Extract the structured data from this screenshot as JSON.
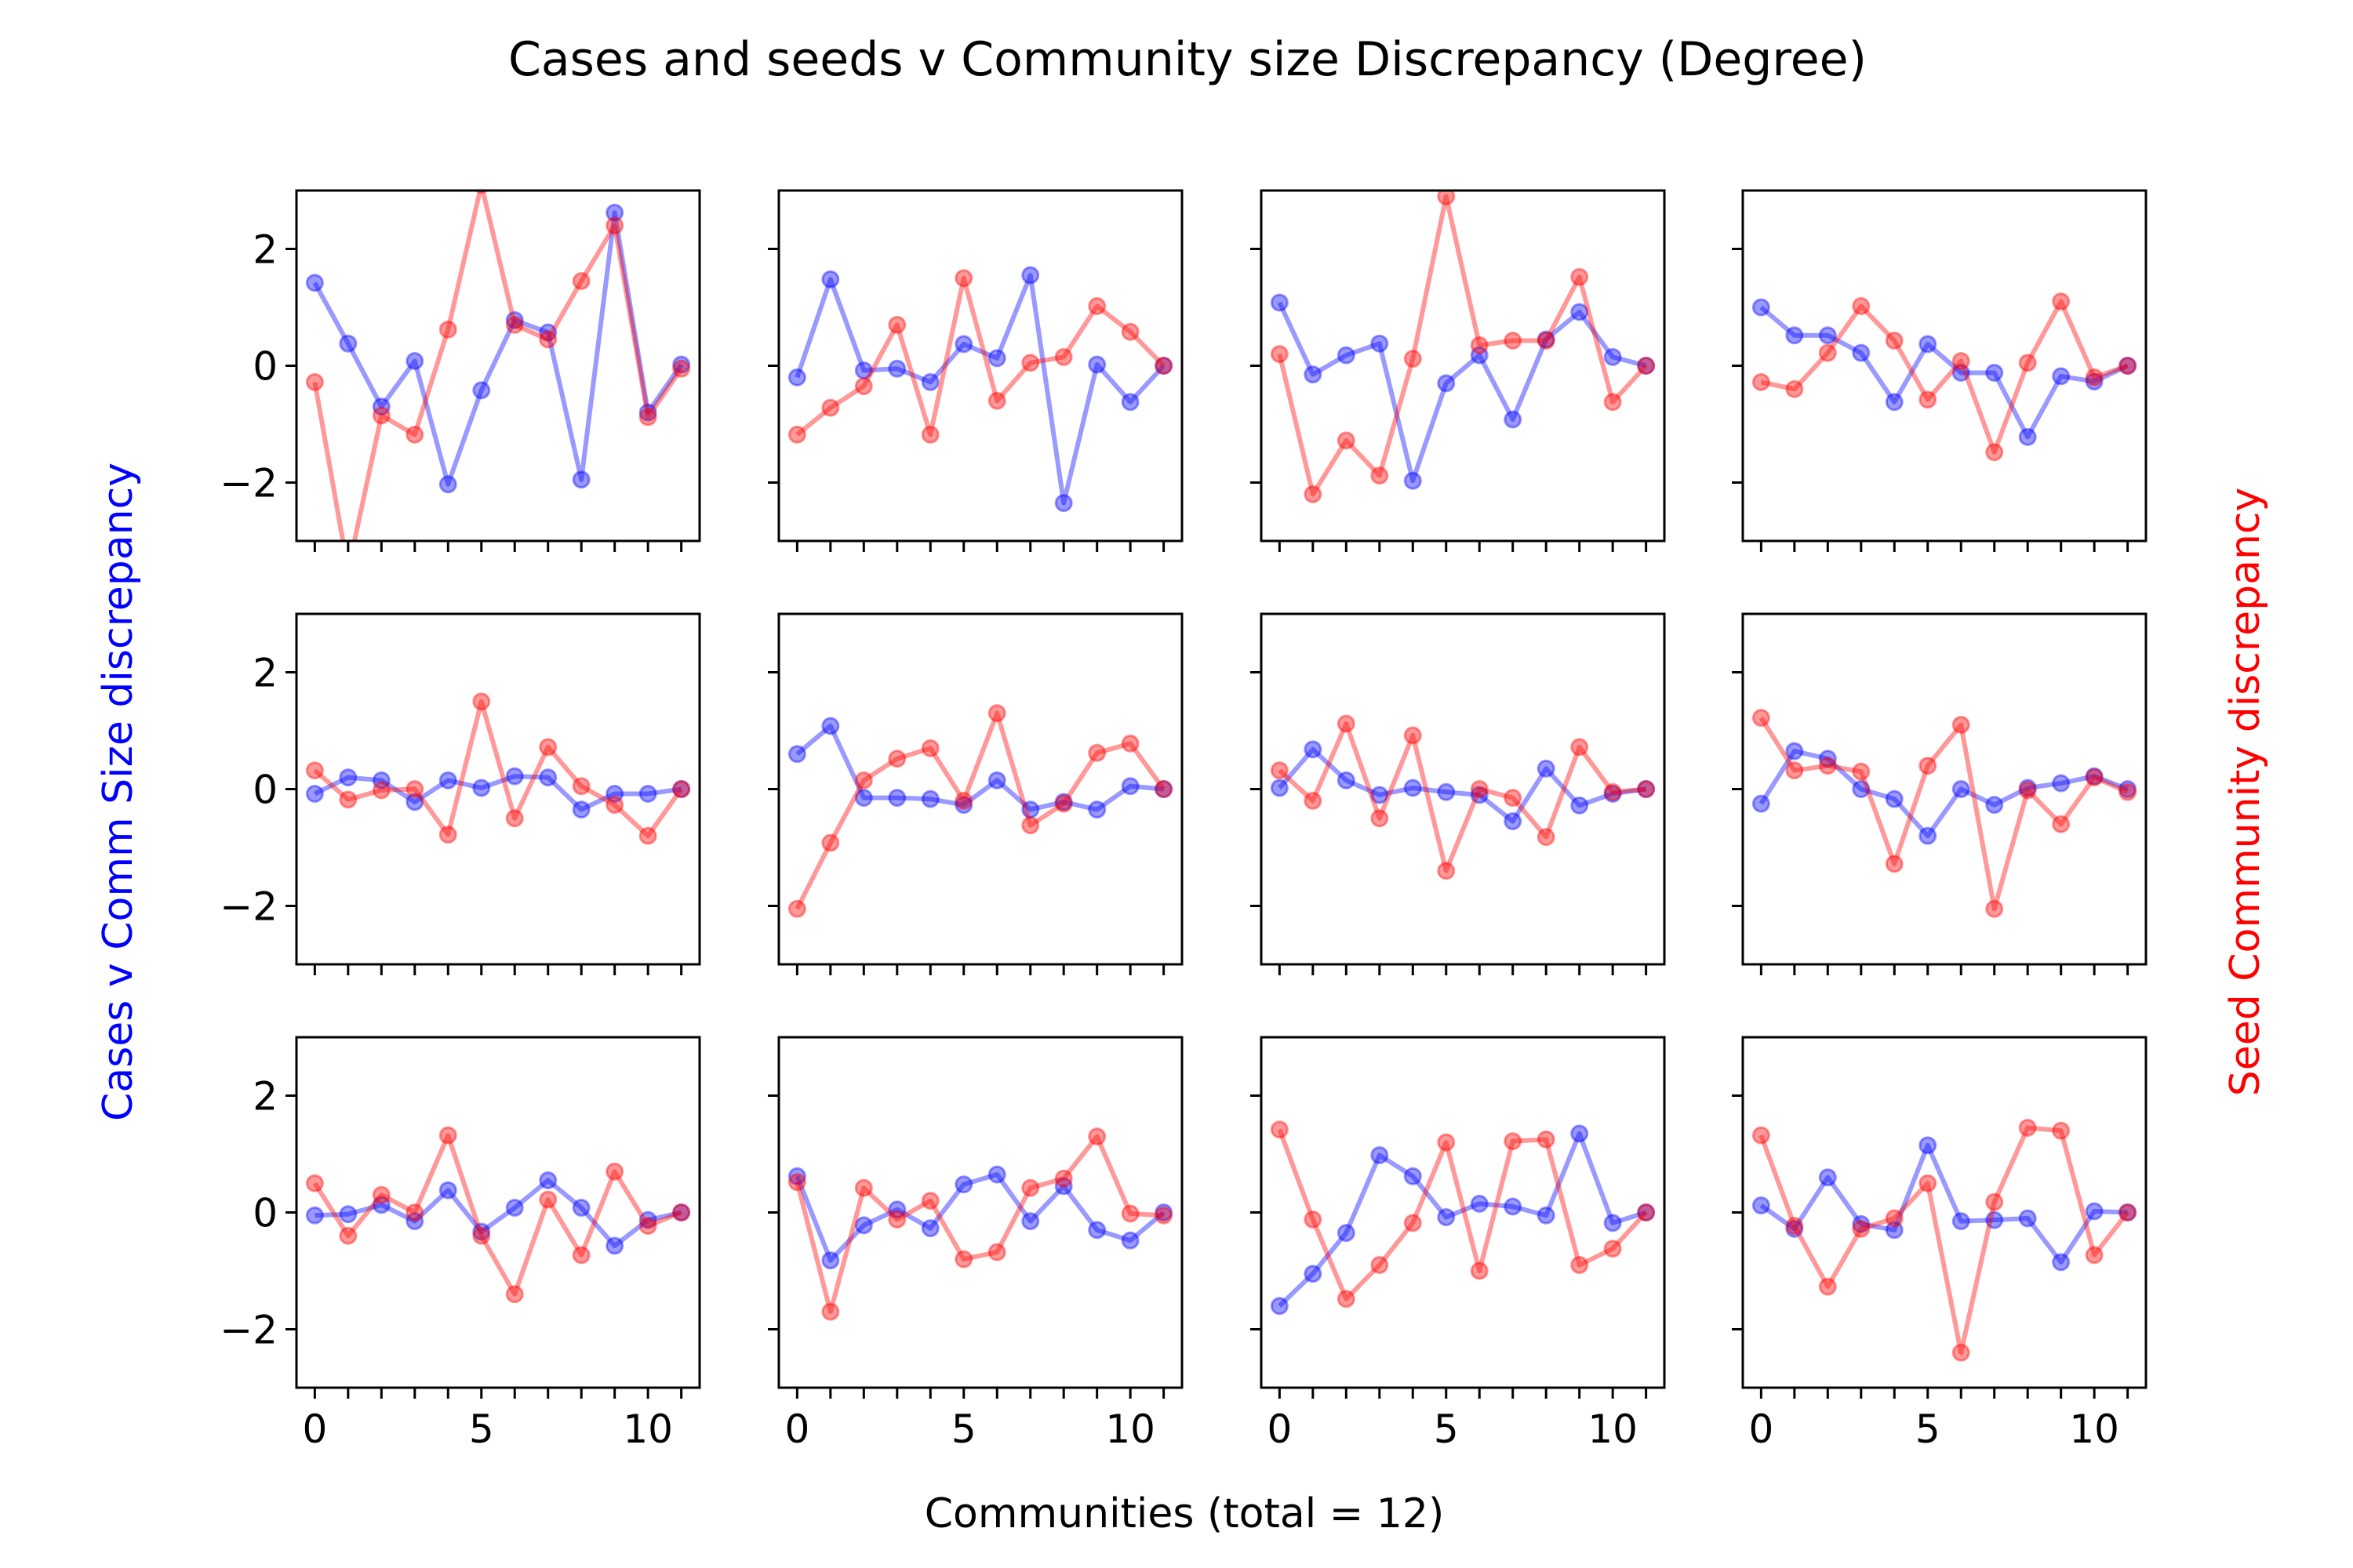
{
  "title": "Cases and seeds v Community size Discrepancy (Degree)",
  "xlabel": "Communities (total = 12)",
  "ylabel_left": "Cases v Comm Size discrepancy",
  "ylabel_right": "Seed Community discrepancy",
  "colors": {
    "cases": "#0000ff",
    "seeds": "#ff0000",
    "frame": "#000000"
  },
  "chart_data": {
    "type": "line",
    "grid": false,
    "layout": "3x4 small multiples",
    "xlim": [
      -0.55,
      11.55
    ],
    "ylim": [
      -3,
      3
    ],
    "xticks": [
      0,
      5,
      10
    ],
    "xticks_minor": [
      0,
      1,
      2,
      3,
      4,
      5,
      6,
      7,
      8,
      9,
      10,
      11
    ],
    "yticks": [
      -2,
      0,
      2
    ],
    "x": [
      0,
      1,
      2,
      3,
      4,
      5,
      6,
      7,
      8,
      9,
      10,
      11
    ],
    "panels": [
      {
        "cases": [
          1.42,
          0.38,
          -0.7,
          0.08,
          -2.03,
          -0.42,
          0.78,
          0.57,
          -1.95,
          2.62,
          -0.8,
          0.02
        ],
        "seeds": [
          -0.28,
          -3.5,
          -0.85,
          -1.18,
          0.62,
          3.1,
          0.7,
          0.45,
          1.45,
          2.4,
          -0.88,
          -0.05
        ]
      },
      {
        "cases": [
          -0.2,
          1.48,
          -0.08,
          -0.05,
          -0.28,
          0.37,
          0.13,
          1.55,
          -2.35,
          0.02,
          -0.62,
          0.0
        ],
        "seeds": [
          -1.18,
          -0.72,
          -0.35,
          0.7,
          -1.18,
          1.5,
          -0.6,
          0.05,
          0.15,
          1.02,
          0.58,
          0.0
        ]
      },
      {
        "cases": [
          1.08,
          -0.15,
          0.18,
          0.38,
          -1.97,
          -0.3,
          0.18,
          -0.92,
          0.45,
          0.92,
          0.15,
          0.0
        ],
        "seeds": [
          0.2,
          -2.2,
          -1.28,
          -1.88,
          0.12,
          2.9,
          0.35,
          0.43,
          0.43,
          1.52,
          -0.62,
          0.0
        ]
      },
      {
        "cases": [
          1.0,
          0.52,
          0.52,
          0.22,
          -0.62,
          0.37,
          -0.12,
          -0.12,
          -1.22,
          -0.18,
          -0.27,
          0.0
        ],
        "seeds": [
          -0.28,
          -0.4,
          0.22,
          1.02,
          0.43,
          -0.58,
          0.08,
          -1.48,
          0.05,
          1.1,
          -0.2,
          0.0
        ]
      },
      {
        "cases": [
          -0.08,
          0.2,
          0.15,
          -0.22,
          0.15,
          0.02,
          0.22,
          0.2,
          -0.35,
          -0.08,
          -0.08,
          0.0
        ],
        "seeds": [
          0.32,
          -0.18,
          -0.02,
          0.0,
          -0.78,
          1.5,
          -0.5,
          0.72,
          0.05,
          -0.27,
          -0.8,
          0.0
        ]
      },
      {
        "cases": [
          0.6,
          1.08,
          -0.15,
          -0.15,
          -0.17,
          -0.27,
          0.15,
          -0.35,
          -0.22,
          -0.35,
          0.05,
          0.0
        ],
        "seeds": [
          -2.05,
          -0.92,
          0.15,
          0.52,
          0.7,
          -0.2,
          1.3,
          -0.62,
          -0.25,
          0.62,
          0.78,
          0.0
        ]
      },
      {
        "cases": [
          0.02,
          0.68,
          0.15,
          -0.1,
          0.02,
          -0.05,
          -0.1,
          -0.55,
          0.35,
          -0.28,
          -0.08,
          0.0
        ],
        "seeds": [
          0.32,
          -0.2,
          1.12,
          -0.5,
          0.92,
          -1.4,
          0.0,
          -0.15,
          -0.82,
          0.72,
          -0.05,
          0.0
        ]
      },
      {
        "cases": [
          -0.25,
          0.65,
          0.52,
          0.0,
          -0.17,
          -0.8,
          0.0,
          -0.27,
          0.02,
          0.1,
          0.22,
          0.0
        ],
        "seeds": [
          1.22,
          0.32,
          0.4,
          0.3,
          -1.28,
          0.4,
          1.1,
          -2.05,
          -0.02,
          -0.6,
          0.2,
          -0.05
        ]
      },
      {
        "cases": [
          -0.05,
          -0.03,
          0.13,
          -0.15,
          0.38,
          -0.33,
          0.08,
          0.55,
          0.08,
          -0.57,
          -0.13,
          0.0
        ],
        "seeds": [
          0.5,
          -0.4,
          0.3,
          0.0,
          1.32,
          -0.4,
          -1.4,
          0.22,
          -0.73,
          0.7,
          -0.23,
          0.0
        ]
      },
      {
        "cases": [
          0.62,
          -0.82,
          -0.22,
          0.05,
          -0.27,
          0.48,
          0.65,
          -0.15,
          0.45,
          -0.3,
          -0.48,
          0.0
        ],
        "seeds": [
          0.52,
          -1.7,
          0.42,
          -0.12,
          0.2,
          -0.8,
          -0.68,
          0.42,
          0.58,
          1.3,
          -0.02,
          -0.05
        ]
      },
      {
        "cases": [
          -1.6,
          -1.05,
          -0.35,
          0.98,
          0.62,
          -0.08,
          0.15,
          0.1,
          -0.05,
          1.35,
          -0.18,
          0.0
        ],
        "seeds": [
          1.42,
          -0.12,
          -1.48,
          -0.9,
          -0.18,
          1.2,
          -1.0,
          1.22,
          1.25,
          -0.9,
          -0.62,
          0.0
        ]
      },
      {
        "cases": [
          0.12,
          -0.28,
          0.6,
          -0.2,
          -0.3,
          1.15,
          -0.15,
          -0.13,
          -0.1,
          -0.85,
          0.02,
          0.0
        ],
        "seeds": [
          1.32,
          -0.23,
          -1.27,
          -0.28,
          -0.1,
          0.5,
          -2.4,
          0.18,
          1.45,
          1.4,
          -0.73,
          0.0
        ]
      }
    ]
  }
}
